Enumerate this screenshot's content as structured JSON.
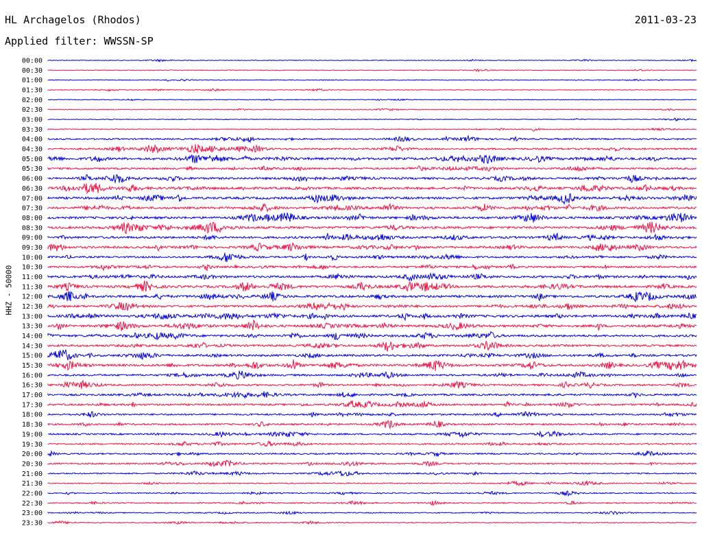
{
  "header": {
    "station": "HL Archagelos (Rhodos)",
    "date": "2011-03-23",
    "filter": "Applied filter: WWSSN-SP",
    "channel": "HHZ - 50000"
  },
  "chart_data": {
    "type": "line",
    "title": "HL Archagelos (Rhodos)",
    "subtitle": "Applied filter: WWSSN-SP",
    "ylabel": "HHZ - 50000",
    "traces": [
      "00:00",
      "00:30",
      "01:00",
      "01:30",
      "02:00",
      "02:30",
      "03:00",
      "03:30",
      "04:00",
      "04:30",
      "05:00",
      "05:30",
      "06:00",
      "06:30",
      "07:00",
      "07:30",
      "08:00",
      "08:30",
      "09:00",
      "09:30",
      "10:00",
      "10:30",
      "11:00",
      "11:30",
      "12:00",
      "12:30",
      "13:00",
      "13:30",
      "14:00",
      "14:30",
      "15:00",
      "15:30",
      "16:00",
      "16:30",
      "17:00",
      "17:30",
      "18:00",
      "18:30",
      "19:00",
      "19:30",
      "20:00",
      "20:30",
      "21:00",
      "21:30",
      "22:00",
      "22:30",
      "23:00",
      "23:30"
    ],
    "colors": [
      "#0000dd",
      "#ee1144"
    ],
    "activity": [
      0.1,
      0.1,
      0.1,
      0.12,
      0.12,
      0.1,
      0.12,
      0.2,
      0.45,
      0.55,
      0.8,
      0.6,
      0.7,
      0.8,
      0.8,
      0.75,
      0.8,
      0.8,
      0.75,
      0.75,
      0.6,
      0.6,
      0.75,
      0.85,
      0.8,
      0.75,
      0.85,
      0.8,
      0.75,
      0.7,
      0.7,
      0.8,
      0.6,
      0.6,
      0.6,
      0.6,
      0.55,
      0.55,
      0.5,
      0.45,
      0.45,
      0.45,
      0.35,
      0.3,
      0.3,
      0.3,
      0.25,
      0.2
    ],
    "grid": false,
    "legend": "none"
  }
}
